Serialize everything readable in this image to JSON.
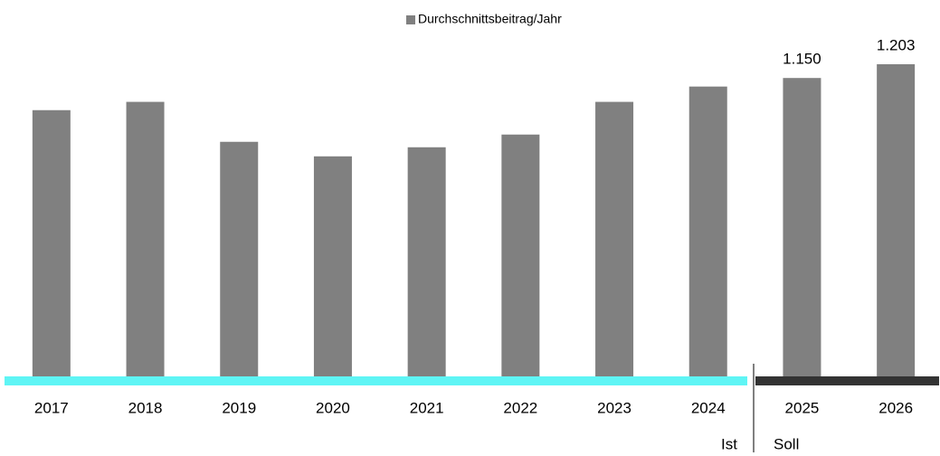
{
  "chart_data": {
    "type": "bar",
    "legend": "Durchschnittsbeitrag/Jahr",
    "categories": [
      "2017",
      "2018",
      "2019",
      "2020",
      "2021",
      "2022",
      "2023",
      "2024",
      "2025",
      "2026"
    ],
    "values": [
      1026,
      1058,
      904,
      848,
      883,
      932,
      1058,
      1117,
      1150,
      1203
    ],
    "value_labels": [
      null,
      null,
      null,
      null,
      null,
      null,
      null,
      null,
      "1.150",
      "1.203"
    ],
    "color": "#808080",
    "annotations": [
      "Ist",
      "Soll"
    ],
    "period_colors": [
      "#5ff5f5",
      "#333333"
    ]
  }
}
